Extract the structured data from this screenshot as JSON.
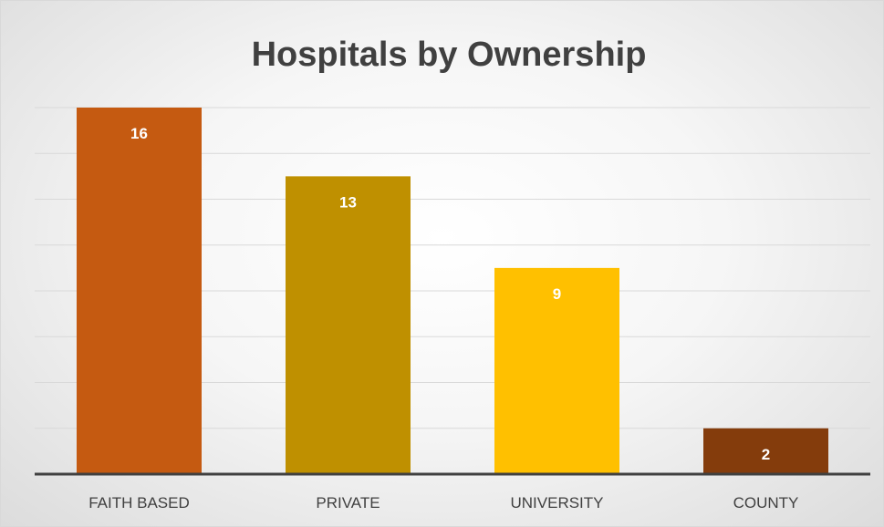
{
  "chart_data": {
    "type": "bar",
    "title": "Hospitals by Ownership",
    "categories": [
      "FAITH BASED",
      "PRIVATE",
      "UNIVERSITY",
      "COUNTY"
    ],
    "values": [
      16,
      13,
      9,
      2
    ],
    "colors": [
      "#c55a11",
      "#bf9000",
      "#ffc000",
      "#843c0c"
    ],
    "ylim": [
      0,
      16
    ],
    "grid": true,
    "legend": "none",
    "data_labels": true
  }
}
